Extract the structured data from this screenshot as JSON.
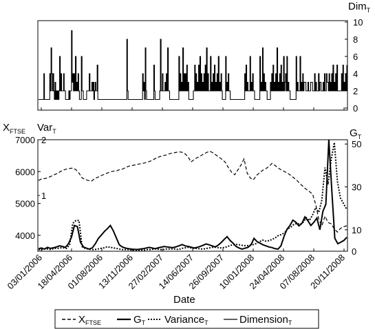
{
  "chart_data": [
    {
      "id": "dimension_panel",
      "type": "line",
      "ylabel": "Dim",
      "ylabel_sub": "T",
      "ylim": [
        0,
        10
      ],
      "yticks": [
        "0",
        "2",
        "4",
        "6",
        "8",
        "10"
      ],
      "yaxis_side": "right",
      "series": [
        {
          "name": "Dimension",
          "name_sub": "T",
          "style": "solid",
          "values": [
            1,
            1,
            1,
            1,
            1,
            1,
            1,
            1,
            4,
            1,
            1,
            1,
            1,
            1,
            1,
            1,
            1,
            4,
            2,
            7,
            4,
            2,
            4,
            2,
            1,
            3,
            1,
            2,
            1,
            2,
            1,
            2,
            6,
            2,
            4,
            2,
            2,
            2,
            4,
            2,
            2,
            1,
            1,
            1,
            1,
            1,
            2,
            1,
            2,
            2,
            9,
            3,
            4,
            2,
            4,
            2,
            6,
            2,
            3,
            2,
            4,
            2,
            1,
            1,
            1,
            6,
            2,
            2,
            1,
            1,
            1,
            1,
            1,
            2,
            2,
            2,
            2,
            4,
            2,
            2,
            2,
            3,
            2,
            3,
            1,
            2,
            3,
            2,
            2,
            5,
            1,
            1,
            1,
            1,
            1,
            1,
            1,
            1,
            1,
            1,
            1,
            1,
            1,
            1,
            1,
            1,
            1,
            1,
            1,
            1,
            1,
            1,
            1,
            1,
            1,
            1,
            1,
            1,
            1,
            1,
            1,
            1,
            1,
            1,
            1,
            1,
            1,
            1,
            1,
            1,
            1,
            1,
            1,
            1,
            8,
            2,
            1,
            1,
            1,
            1,
            1,
            1,
            1,
            1,
            1,
            1,
            1,
            1,
            1,
            1,
            1,
            1,
            1,
            1,
            1,
            1,
            1,
            1,
            4,
            2,
            3,
            1,
            7,
            2,
            1,
            1,
            1,
            1,
            1,
            1,
            1,
            1,
            1,
            1,
            1,
            5,
            2,
            1,
            1,
            1,
            1,
            1,
            1,
            1,
            2,
            8,
            2,
            2,
            4,
            2,
            2,
            2,
            3,
            2,
            4,
            2,
            7,
            2,
            2,
            1,
            1,
            1,
            1,
            1,
            1,
            1,
            1,
            1,
            1,
            1,
            1,
            1,
            1,
            6,
            2,
            4,
            2,
            3,
            2,
            7,
            2,
            4,
            2,
            4,
            2,
            5,
            2,
            3,
            1,
            1,
            1,
            1,
            1,
            1,
            1,
            2,
            2,
            5,
            2,
            4,
            2,
            3,
            2,
            5,
            2,
            6,
            2,
            4,
            2,
            3,
            2,
            4,
            2,
            5,
            2,
            7,
            2,
            4,
            2,
            2,
            2,
            6,
            2,
            3,
            2,
            4,
            2,
            5,
            2,
            3,
            2,
            4,
            2,
            6,
            2,
            3,
            2,
            4,
            2,
            1,
            1,
            1,
            1,
            1,
            6,
            2,
            3,
            2,
            4,
            2,
            2,
            1,
            1,
            1,
            1,
            1,
            1,
            1,
            1,
            1,
            1,
            1,
            1,
            1,
            1,
            1,
            1,
            1,
            1,
            1,
            1,
            1,
            1,
            4,
            2,
            5,
            2,
            3,
            2,
            2,
            2,
            6,
            2,
            3,
            2,
            4,
            2,
            2,
            1,
            1,
            1,
            1,
            1,
            1,
            1,
            1,
            6,
            2,
            3,
            2,
            7,
            2,
            4,
            2,
            3,
            2,
            2,
            1,
            1,
            1,
            1,
            1,
            3,
            2,
            4,
            2,
            5,
            2,
            3,
            2,
            4,
            2,
            7,
            2,
            3,
            2,
            4,
            2,
            5,
            2,
            3,
            2,
            6,
            2,
            3,
            4,
            2,
            6,
            2,
            3,
            2,
            2,
            1,
            1,
            1,
            1,
            1,
            1,
            1,
            1,
            1,
            6,
            2,
            3,
            2,
            2,
            2,
            6,
            2,
            3,
            2,
            4,
            2,
            3,
            3,
            3,
            2,
            2,
            2,
            3,
            2,
            2,
            2,
            3,
            3,
            3,
            2,
            2,
            2,
            4,
            2,
            3,
            2,
            2,
            2,
            4,
            2,
            3,
            3,
            2,
            2,
            2,
            3,
            2,
            4,
            2,
            2,
            4,
            3,
            3,
            2,
            4,
            2,
            3,
            2,
            4,
            2,
            5,
            2,
            3,
            2,
            4,
            2,
            5,
            2,
            2,
            2,
            2,
            2,
            2,
            4,
            2,
            5,
            2,
            3,
            2,
            4,
            2,
            5
          ]
        }
      ]
    },
    {
      "id": "main_panel",
      "type": "line",
      "title": "",
      "xlabel": "Date",
      "x_ticks": [
        "03/01/2006",
        "18/04/2006",
        "01/08/2006",
        "13/11/2006",
        "27/02/2007",
        "14/06/2007",
        "26/09/2007",
        "10/01/2008",
        "24/04/2008",
        "07/08/2008",
        "20/11/2008"
      ],
      "left_axes": [
        {
          "label": "X",
          "label_sub": "FTSE",
          "ylim": [
            3500,
            7000
          ],
          "yticks": [
            "4000",
            "5000",
            "6000",
            "7000"
          ]
        },
        {
          "label": "Var",
          "label_sub": "T",
          "ylim": [
            0,
            2
          ],
          "yticks": [
            "1",
            "2"
          ]
        }
      ],
      "right_axis": {
        "label": "G",
        "label_sub": "T",
        "ylim": [
          0,
          52
        ],
        "yticks": [
          "0",
          "10",
          "30",
          "50"
        ]
      },
      "series": [
        {
          "name": "X",
          "name_sub": "FTSE",
          "style": "dashed",
          "axis": "left_ftse",
          "values": [
            5720,
            5770,
            5780,
            5810,
            5850,
            5900,
            5940,
            6000,
            6050,
            6080,
            6100,
            6110,
            6060,
            5950,
            5800,
            5750,
            5720,
            5700,
            5780,
            5820,
            5870,
            5910,
            5950,
            5990,
            6010,
            6020,
            6060,
            6080,
            6130,
            6170,
            6190,
            6210,
            6230,
            6250,
            6270,
            6300,
            6330,
            6380,
            6440,
            6470,
            6500,
            6520,
            6560,
            6580,
            6600,
            6620,
            6610,
            6560,
            6470,
            6300,
            6380,
            6440,
            6490,
            6550,
            6600,
            6640,
            6590,
            6520,
            6450,
            6380,
            6290,
            6120,
            5980,
            5900,
            6050,
            6200,
            6400,
            5950,
            5800,
            5740,
            5880,
            5960,
            6040,
            6090,
            6160,
            6260,
            6190,
            6110,
            6050,
            6000,
            5950,
            5880,
            5800,
            5720,
            5620,
            5530,
            5440,
            5370,
            5300,
            4980,
            4500,
            4300,
            4600,
            4400,
            4360,
            4200,
            4100,
            4220,
            4270,
            4300
          ]
        },
        {
          "name": "G",
          "name_sub": "T",
          "style": "solid-bold",
          "axis": "right",
          "values": [
            1.2,
            1.5,
            1.0,
            1.8,
            1.3,
            1.6,
            2.0,
            2.5,
            2.2,
            1.8,
            3.5,
            6.5,
            12.0,
            11.5,
            4.2,
            2.0,
            1.4,
            1.0,
            1.6,
            3.5,
            6.0,
            7.5,
            9.2,
            10.5,
            12.0,
            9.5,
            6.2,
            3.0,
            2.0,
            1.5,
            1.2,
            1.0,
            0.9,
            0.8,
            1.0,
            1.2,
            1.5,
            1.8,
            1.5,
            1.2,
            1.6,
            1.9,
            2.2,
            2.0,
            1.8,
            1.7,
            2.1,
            2.6,
            3.1,
            2.5,
            2.2,
            1.9,
            1.5,
            1.8,
            2.2,
            2.8,
            3.4,
            3.0,
            2.5,
            2.0,
            2.8,
            4.0,
            5.5,
            6.8,
            5.0,
            3.8,
            2.2,
            1.5,
            1.0,
            1.4,
            1.8,
            3.0,
            6.0,
            4.5,
            3.8,
            3.0,
            2.5,
            2.0,
            1.7,
            1.2,
            1.0,
            2.5,
            6.8,
            10.2,
            12.0,
            14.5,
            13.5,
            11.8,
            13.0,
            16.0,
            14.2,
            12.0,
            13.5,
            15.5,
            10.0,
            18.5,
            22.0,
            52.0,
            28.0,
            6.0,
            3.5,
            4.2,
            5.0,
            6.5
          ]
        },
        {
          "name": "Variance",
          "name_sub": "T",
          "style": "dotted",
          "axis": "left_var",
          "values": [
            0.03,
            0.03,
            0.04,
            0.04,
            0.03,
            0.05,
            0.05,
            0.06,
            0.06,
            0.05,
            0.12,
            0.5,
            0.55,
            0.55,
            0.08,
            0.05,
            0.04,
            0.03,
            0.03,
            0.04,
            0.05,
            0.06,
            0.08,
            0.07,
            0.06,
            0.05,
            0.04,
            0.03,
            0.03,
            0.03,
            0.02,
            0.02,
            0.02,
            0.02,
            0.02,
            0.03,
            0.03,
            0.04,
            0.04,
            0.03,
            0.03,
            0.04,
            0.04,
            0.04,
            0.04,
            0.03,
            0.05,
            0.06,
            0.07,
            0.06,
            0.05,
            0.05,
            0.04,
            0.04,
            0.05,
            0.06,
            0.07,
            0.07,
            0.06,
            0.06,
            0.07,
            0.09,
            0.11,
            0.12,
            0.12,
            0.11,
            0.1,
            0.1,
            0.11,
            0.12,
            0.14,
            0.17,
            0.2,
            0.18,
            0.19,
            0.21,
            0.24,
            0.28,
            0.3,
            0.33,
            0.4,
            0.43,
            0.48,
            0.5,
            0.48,
            0.52,
            0.6,
            0.55,
            0.65,
            0.78,
            0.7,
            0.92,
            1.5,
            1.2,
            1.65,
            1.95,
            1.25,
            0.95,
            0.85,
            0.75
          ]
        }
      ]
    }
  ],
  "legend": {
    "placement": "bottom",
    "items": [
      {
        "label": "X",
        "sub": "FTSE",
        "style": "dashed"
      },
      {
        "label": "G",
        "sub": "T",
        "style": "solid-bold"
      },
      {
        "label": "Variance",
        "sub": "T",
        "style": "dotted"
      },
      {
        "label": "Dimension",
        "sub": "T",
        "style": "solid"
      }
    ]
  }
}
